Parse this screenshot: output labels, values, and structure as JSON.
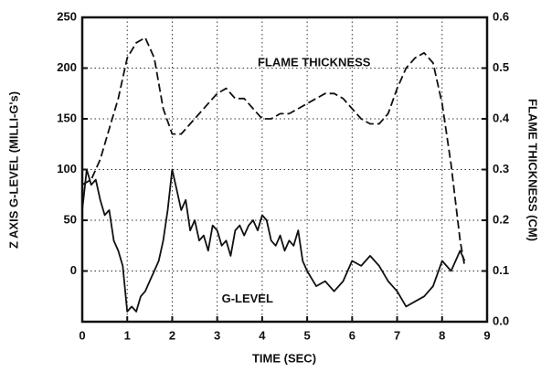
{
  "chart_data": {
    "type": "line",
    "xlabel": "TIME (SEC)",
    "ylabel": "Z AXIS G-LEVEL (MILLI-G's)",
    "y2label": "FLAME THICKNESS (CM)",
    "xlim": [
      0,
      9
    ],
    "xticks": [
      0,
      1,
      2,
      3,
      4,
      5,
      6,
      7,
      8,
      9
    ],
    "ylim": [
      -50,
      250
    ],
    "yticks": [
      0,
      50,
      100,
      150,
      200,
      250
    ],
    "y2lim": [
      0,
      0.6
    ],
    "y2ticks": [
      {
        "value": 0,
        "label": "0.0"
      },
      0.1,
      0.2,
      0.3,
      0.4,
      0.5,
      0.6
    ],
    "grid": true,
    "series": [
      {
        "name": "G-LEVEL",
        "color": "#111111",
        "dash": false,
        "x": [
          0,
          0.1,
          0.2,
          0.3,
          0.4,
          0.5,
          0.6,
          0.7,
          0.8,
          0.9,
          1.0,
          1.1,
          1.2,
          1.3,
          1.4,
          1.5,
          1.6,
          1.7,
          1.8,
          1.9,
          2.0,
          2.1,
          2.2,
          2.3,
          2.4,
          2.5,
          2.6,
          2.7,
          2.8,
          2.9,
          3.0,
          3.1,
          3.2,
          3.3,
          3.4,
          3.5,
          3.6,
          3.7,
          3.8,
          3.9,
          4.0,
          4.1,
          4.2,
          4.3,
          4.4,
          4.5,
          4.6,
          4.7,
          4.8,
          4.9,
          5.0,
          5.2,
          5.4,
          5.6,
          5.8,
          6.0,
          6.2,
          6.4,
          6.6,
          6.8,
          7.0,
          7.2,
          7.4,
          7.6,
          7.8,
          8.0,
          8.2,
          8.4,
          8.5
        ],
        "values": [
          60,
          100,
          85,
          90,
          70,
          55,
          60,
          30,
          20,
          5,
          -40,
          -35,
          -40,
          -25,
          -20,
          -10,
          0,
          10,
          30,
          60,
          100,
          80,
          60,
          70,
          40,
          50,
          30,
          35,
          20,
          45,
          40,
          25,
          30,
          15,
          40,
          45,
          35,
          45,
          50,
          40,
          55,
          50,
          30,
          25,
          35,
          20,
          30,
          25,
          40,
          10,
          0,
          -15,
          -10,
          -20,
          -10,
          10,
          5,
          15,
          5,
          -10,
          -20,
          -35,
          -30,
          -25,
          -15,
          10,
          0,
          20,
          10
        ]
      },
      {
        "name": "FLAME THICKNESS",
        "color": "#111111",
        "dash": true,
        "axis": "y2",
        "x": [
          0,
          0.2,
          0.4,
          0.6,
          0.8,
          1.0,
          1.2,
          1.4,
          1.6,
          1.8,
          2.0,
          2.2,
          2.4,
          2.6,
          2.8,
          3.0,
          3.2,
          3.4,
          3.6,
          3.8,
          4.0,
          4.2,
          4.4,
          4.6,
          4.8,
          5.0,
          5.2,
          5.4,
          5.6,
          5.8,
          6.0,
          6.2,
          6.4,
          6.6,
          6.8,
          7.0,
          7.2,
          7.4,
          7.6,
          7.8,
          8.0,
          8.2,
          8.4,
          8.5
        ],
        "values": [
          0.27,
          0.28,
          0.32,
          0.38,
          0.44,
          0.52,
          0.55,
          0.56,
          0.52,
          0.42,
          0.37,
          0.37,
          0.39,
          0.41,
          0.43,
          0.45,
          0.46,
          0.44,
          0.44,
          0.42,
          0.4,
          0.4,
          0.41,
          0.41,
          0.42,
          0.43,
          0.44,
          0.45,
          0.45,
          0.44,
          0.42,
          0.4,
          0.39,
          0.39,
          0.41,
          0.46,
          0.5,
          0.52,
          0.53,
          0.51,
          0.43,
          0.31,
          0.16,
          0.11
        ]
      }
    ]
  }
}
